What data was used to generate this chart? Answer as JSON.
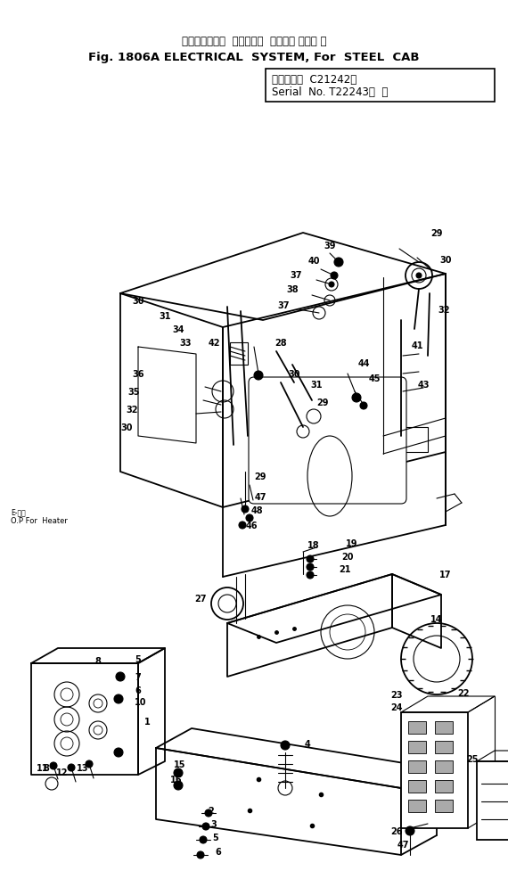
{
  "title_japanese": "エレクトリカル  システム，  スチール キャブ 用",
  "title_english": "Fig. 1806A ELECTRICAL  SYSTEM, For  STEEL  CAB",
  "serial_line1": "（適用号等  C21242～",
  "serial_line2": "Serial  No. T22243～  ）",
  "bg_color": "#ffffff",
  "line_color": "#000000",
  "fig_width": 5.7,
  "fig_height": 9.87,
  "dpi": 100
}
